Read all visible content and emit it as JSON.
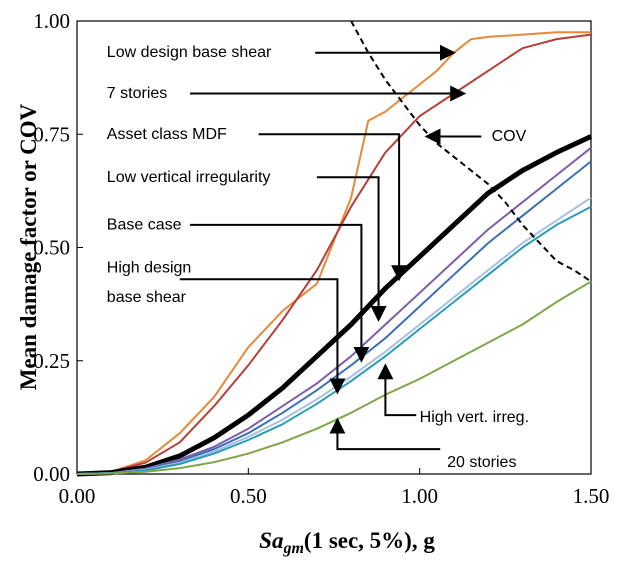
{
  "chart_data": {
    "type": "line",
    "xlabel_prefix": "Sa",
    "xlabel_sub": "gm",
    "xlabel_suffix": "(1 sec, 5%), g",
    "ylabel": "Mean damage factor or COV",
    "xlim": [
      0,
      1.5
    ],
    "ylim": [
      0,
      1.0
    ],
    "x_ticks": [
      0,
      0.5,
      1.0,
      1.5
    ],
    "x_tick_labels": [
      "0.00",
      "0.50",
      "1.00",
      "1.50"
    ],
    "y_ticks": [
      0,
      0.25,
      0.5,
      0.75,
      1.0
    ],
    "y_tick_labels": [
      "0.00",
      "0.25",
      "0.50",
      "0.75",
      "1.00"
    ],
    "grid": false,
    "colors": {
      "low_design_base_shear": "#e8883a",
      "seven_stories": "#b5403a",
      "asset_class_mdf": "#000000",
      "low_vertical_irregularity": "#7b5ea7",
      "base_case": "#3b6fb6",
      "high_design_base_shear": "#a7bfe0",
      "high_vert_irreg": "#2a9bb8",
      "twenty_stories": "#7fa64a",
      "cov": "#000000"
    },
    "series": [
      {
        "key": "low_design_base_shear",
        "width": 2,
        "dash": "",
        "x": [
          0,
          0.1,
          0.2,
          0.3,
          0.4,
          0.5,
          0.6,
          0.65,
          0.7,
          0.8,
          0.85,
          0.9,
          0.95,
          1.0,
          1.05,
          1.1,
          1.15,
          1.2,
          1.3,
          1.4,
          1.5
        ],
        "values": [
          0,
          0.005,
          0.03,
          0.09,
          0.17,
          0.28,
          0.36,
          0.39,
          0.42,
          0.61,
          0.78,
          0.8,
          0.83,
          0.86,
          0.89,
          0.93,
          0.96,
          0.965,
          0.97,
          0.975,
          0.975
        ]
      },
      {
        "key": "seven_stories",
        "width": 2,
        "dash": "",
        "x": [
          0,
          0.1,
          0.2,
          0.3,
          0.4,
          0.5,
          0.6,
          0.7,
          0.8,
          0.9,
          1.0,
          1.1,
          1.2,
          1.3,
          1.4,
          1.5
        ],
        "values": [
          0,
          0.005,
          0.025,
          0.07,
          0.15,
          0.24,
          0.34,
          0.45,
          0.59,
          0.71,
          0.79,
          0.84,
          0.89,
          0.94,
          0.96,
          0.97
        ]
      },
      {
        "key": "asset_class_mdf",
        "width": 5,
        "dash": "",
        "x": [
          0,
          0.1,
          0.2,
          0.3,
          0.4,
          0.5,
          0.6,
          0.7,
          0.8,
          0.9,
          1.0,
          1.1,
          1.2,
          1.3,
          1.4,
          1.5
        ],
        "values": [
          0,
          0.003,
          0.015,
          0.04,
          0.08,
          0.13,
          0.19,
          0.26,
          0.33,
          0.41,
          0.48,
          0.55,
          0.62,
          0.67,
          0.71,
          0.745
        ]
      },
      {
        "key": "low_vertical_irregularity",
        "width": 2,
        "dash": "",
        "x": [
          0,
          0.1,
          0.2,
          0.3,
          0.4,
          0.5,
          0.6,
          0.7,
          0.8,
          0.9,
          1.0,
          1.1,
          1.2,
          1.3,
          1.4,
          1.5
        ],
        "values": [
          0,
          0.002,
          0.012,
          0.032,
          0.06,
          0.1,
          0.15,
          0.2,
          0.26,
          0.33,
          0.4,
          0.47,
          0.54,
          0.6,
          0.66,
          0.72
        ]
      },
      {
        "key": "base_case",
        "width": 2,
        "dash": "",
        "x": [
          0,
          0.1,
          0.2,
          0.3,
          0.4,
          0.5,
          0.6,
          0.7,
          0.8,
          0.9,
          1.0,
          1.1,
          1.2,
          1.3,
          1.4,
          1.5
        ],
        "values": [
          0,
          0.002,
          0.01,
          0.028,
          0.055,
          0.09,
          0.135,
          0.185,
          0.24,
          0.3,
          0.37,
          0.44,
          0.51,
          0.57,
          0.63,
          0.69
        ]
      },
      {
        "key": "high_design_base_shear",
        "width": 2,
        "dash": "",
        "x": [
          0,
          0.1,
          0.2,
          0.3,
          0.4,
          0.5,
          0.6,
          0.7,
          0.8,
          0.9,
          1.0,
          1.1,
          1.2,
          1.3,
          1.4,
          1.5
        ],
        "values": [
          0,
          0.002,
          0.009,
          0.025,
          0.05,
          0.082,
          0.12,
          0.165,
          0.215,
          0.27,
          0.33,
          0.39,
          0.45,
          0.51,
          0.56,
          0.61
        ]
      },
      {
        "key": "high_vert_irreg",
        "width": 2,
        "dash": "",
        "x": [
          0,
          0.1,
          0.2,
          0.3,
          0.4,
          0.5,
          0.6,
          0.7,
          0.8,
          0.9,
          1.0,
          1.1,
          1.2,
          1.3,
          1.4,
          1.5
        ],
        "values": [
          0,
          0.002,
          0.008,
          0.022,
          0.045,
          0.075,
          0.11,
          0.155,
          0.205,
          0.26,
          0.32,
          0.38,
          0.44,
          0.5,
          0.55,
          0.59
        ]
      },
      {
        "key": "twenty_stories",
        "width": 2,
        "dash": "",
        "x": [
          0,
          0.1,
          0.2,
          0.3,
          0.4,
          0.5,
          0.6,
          0.7,
          0.8,
          0.9,
          1.0,
          1.1,
          1.2,
          1.3,
          1.4,
          1.5
        ],
        "values": [
          0,
          0.001,
          0.005,
          0.013,
          0.026,
          0.045,
          0.07,
          0.1,
          0.135,
          0.175,
          0.21,
          0.25,
          0.29,
          0.33,
          0.38,
          0.425
        ]
      },
      {
        "key": "cov",
        "width": 2,
        "dash": "6,4",
        "x": [
          0.8,
          0.85,
          0.9,
          0.95,
          1.0,
          1.05,
          1.1,
          1.15,
          1.2,
          1.25,
          1.3,
          1.35,
          1.4,
          1.45,
          1.5
        ],
        "values": [
          1.0,
          0.93,
          0.87,
          0.82,
          0.77,
          0.73,
          0.7,
          0.67,
          0.64,
          0.6,
          0.55,
          0.51,
          0.47,
          0.45,
          0.425
        ]
      }
    ],
    "annotations": [
      {
        "text": "Low design base shear",
        "name": "label-low-design-base-shear",
        "tx": 0.087,
        "ty": 0.92,
        "lx0": 0.695,
        "lx1": 1.1,
        "ly": 0.93,
        "arrow_x": 1.1,
        "arrow_y": 0.93,
        "vertical_to": null
      },
      {
        "text": "7 stories",
        "name": "label-7-stories",
        "tx": 0.087,
        "ty": 0.83,
        "lx0": 0.33,
        "lx1": 1.13,
        "ly": 0.84,
        "arrow_x": 1.13,
        "arrow_y": 0.84,
        "vertical_to": null
      },
      {
        "text": "Asset class MDF",
        "name": "label-asset-class-mdf",
        "tx": 0.087,
        "ty": 0.74,
        "lx0": 0.53,
        "lx1": 0.94,
        "ly": 0.75,
        "arrow_x": 0.94,
        "arrow_y": 0.43,
        "vertical_to": 0.43
      },
      {
        "text": "Low vertical irregularity",
        "name": "label-low-vertical-irregularity",
        "tx": 0.087,
        "ty": 0.645,
        "lx0": 0.7,
        "lx1": 0.88,
        "ly": 0.655,
        "arrow_x": 0.88,
        "arrow_y": 0.34,
        "vertical_to": 0.34
      },
      {
        "text": "Base case",
        "name": "label-base-case",
        "tx": 0.087,
        "ty": 0.54,
        "lx0": 0.33,
        "lx1": 0.83,
        "ly": 0.55,
        "arrow_x": 0.83,
        "arrow_y": 0.25,
        "vertical_to": 0.25
      },
      {
        "text": "High design",
        "name": "label-high-design-base-shear-1",
        "tx": 0.087,
        "ty": 0.445,
        "lx0": null,
        "lx1": null,
        "ly": null,
        "arrow_x": null,
        "arrow_y": null,
        "vertical_to": null
      },
      {
        "text": "base shear",
        "name": "label-high-design-base-shear-2",
        "tx": 0.087,
        "ty": 0.38,
        "lx0": 0.3,
        "lx1": 0.76,
        "ly": 0.43,
        "arrow_x": 0.76,
        "arrow_y": 0.18,
        "vertical_to": 0.18
      },
      {
        "text": "COV",
        "name": "label-cov",
        "tx": 1.21,
        "ty": 0.735,
        "lx0": 1.02,
        "lx1": 1.18,
        "ly": 0.745,
        "arrow_x": 1.02,
        "arrow_y": 0.745,
        "vertical_to": null
      },
      {
        "text": "High vert. irreg.",
        "name": "label-high-vert-irreg",
        "tx": 1.0,
        "ty": 0.115,
        "lx0": 0.9,
        "lx1": 0.99,
        "ly": 0.13,
        "arrow_x": 0.9,
        "arrow_y": 0.24,
        "vertical_to": 0.24,
        "vertical_from": 0.13
      },
      {
        "text": "20 stories",
        "name": "label-20-stories",
        "tx": 1.08,
        "ty": 0.015,
        "lx0": 0.76,
        "lx1": 1.06,
        "ly": 0.055,
        "arrow_x": 0.76,
        "arrow_y": 0.12,
        "vertical_to": 0.12,
        "vertical_from": 0.055
      }
    ]
  }
}
